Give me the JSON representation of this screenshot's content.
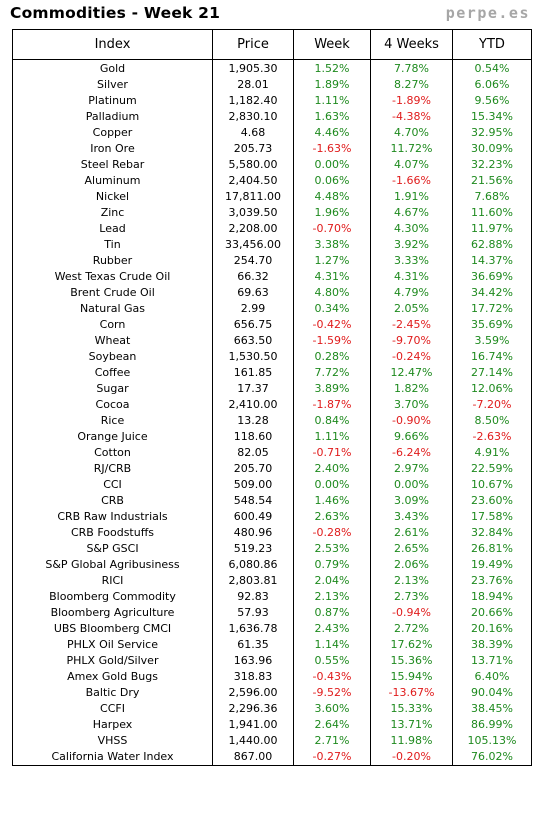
{
  "header": {
    "title": "Commodities - Week 21",
    "brand": "perpe.es"
  },
  "table": {
    "columns": [
      "Index",
      "Price",
      "Week",
      "4 Weeks",
      "YTD"
    ],
    "rows": [
      [
        "Gold",
        "1,905.30",
        "1.52%",
        "7.78%",
        "0.54%"
      ],
      [
        "Silver",
        "28.01",
        "1.89%",
        "8.27%",
        "6.06%"
      ],
      [
        "Platinum",
        "1,182.40",
        "1.11%",
        "-1.89%",
        "9.56%"
      ],
      [
        "Palladium",
        "2,830.10",
        "1.63%",
        "-4.38%",
        "15.34%"
      ],
      [
        "Copper",
        "4.68",
        "4.46%",
        "4.70%",
        "32.95%"
      ],
      [
        "Iron Ore",
        "205.73",
        "-1.63%",
        "11.72%",
        "30.09%"
      ],
      [
        "Steel Rebar",
        "5,580.00",
        "0.00%",
        "4.07%",
        "32.23%"
      ],
      [
        "Aluminum",
        "2,404.50",
        "0.06%",
        "-1.66%",
        "21.56%"
      ],
      [
        "Nickel",
        "17,811.00",
        "4.48%",
        "1.91%",
        "7.68%"
      ],
      [
        "Zinc",
        "3,039.50",
        "1.96%",
        "4.67%",
        "11.60%"
      ],
      [
        "Lead",
        "2,208.00",
        "-0.70%",
        "4.30%",
        "11.97%"
      ],
      [
        "Tin",
        "33,456.00",
        "3.38%",
        "3.92%",
        "62.88%"
      ],
      [
        "Rubber",
        "254.70",
        "1.27%",
        "3.33%",
        "14.37%"
      ],
      [
        "West Texas Crude Oil",
        "66.32",
        "4.31%",
        "4.31%",
        "36.69%"
      ],
      [
        "Brent Crude Oil",
        "69.63",
        "4.80%",
        "4.79%",
        "34.42%"
      ],
      [
        "Natural Gas",
        "2.99",
        "0.34%",
        "2.05%",
        "17.72%"
      ],
      [
        "Corn",
        "656.75",
        "-0.42%",
        "-2.45%",
        "35.69%"
      ],
      [
        "Wheat",
        "663.50",
        "-1.59%",
        "-9.70%",
        "3.59%"
      ],
      [
        "Soybean",
        "1,530.50",
        "0.28%",
        "-0.24%",
        "16.74%"
      ],
      [
        "Coffee",
        "161.85",
        "7.72%",
        "12.47%",
        "27.14%"
      ],
      [
        "Sugar",
        "17.37",
        "3.89%",
        "1.82%",
        "12.06%"
      ],
      [
        "Cocoa",
        "2,410.00",
        "-1.87%",
        "3.70%",
        "-7.20%"
      ],
      [
        "Rice",
        "13.28",
        "0.84%",
        "-0.90%",
        "8.50%"
      ],
      [
        "Orange Juice",
        "118.60",
        "1.11%",
        "9.66%",
        "-2.63%"
      ],
      [
        "Cotton",
        "82.05",
        "-0.71%",
        "-6.24%",
        "4.91%"
      ],
      [
        "RJ/CRB",
        "205.70",
        "2.40%",
        "2.97%",
        "22.59%"
      ],
      [
        "CCI",
        "509.00",
        "0.00%",
        "0.00%",
        "10.67%"
      ],
      [
        "CRB",
        "548.54",
        "1.46%",
        "3.09%",
        "23.60%"
      ],
      [
        "CRB Raw Industrials",
        "600.49",
        "2.63%",
        "3.43%",
        "17.58%"
      ],
      [
        "CRB Foodstuffs",
        "480.96",
        "-0.28%",
        "2.61%",
        "32.84%"
      ],
      [
        "S&P GSCI",
        "519.23",
        "2.53%",
        "2.65%",
        "26.81%"
      ],
      [
        "S&P Global Agribusiness",
        "6,080.86",
        "0.79%",
        "2.06%",
        "19.49%"
      ],
      [
        "RICI",
        "2,803.81",
        "2.04%",
        "2.13%",
        "23.76%"
      ],
      [
        "Bloomberg Commodity",
        "92.83",
        "2.13%",
        "2.73%",
        "18.94%"
      ],
      [
        "Bloomberg Agriculture",
        "57.93",
        "0.87%",
        "-0.94%",
        "20.66%"
      ],
      [
        "UBS Bloomberg CMCI",
        "1,636.78",
        "2.43%",
        "2.72%",
        "20.16%"
      ],
      [
        "PHLX Oil Service",
        "61.35",
        "1.14%",
        "17.62%",
        "38.39%"
      ],
      [
        "PHLX Gold/Silver",
        "163.96",
        "0.55%",
        "15.36%",
        "13.71%"
      ],
      [
        "Amex Gold Bugs",
        "318.83",
        "-0.43%",
        "15.94%",
        "6.40%"
      ],
      [
        "Baltic Dry",
        "2,596.00",
        "-9.52%",
        "-13.67%",
        "90.04%"
      ],
      [
        "CCFI",
        "2,296.36",
        "3.60%",
        "15.33%",
        "38.45%"
      ],
      [
        "Harpex",
        "1,941.00",
        "2.64%",
        "13.71%",
        "86.99%"
      ],
      [
        "VHSS",
        "1,440.00",
        "2.71%",
        "11.98%",
        "105.13%"
      ],
      [
        "California Water Index",
        "867.00",
        "-0.27%",
        "-0.20%",
        "76.02%"
      ]
    ]
  },
  "colors": {
    "positive": "#1e8a1e",
    "negative": "#e01b1b",
    "brand": "#a6a6a6"
  }
}
